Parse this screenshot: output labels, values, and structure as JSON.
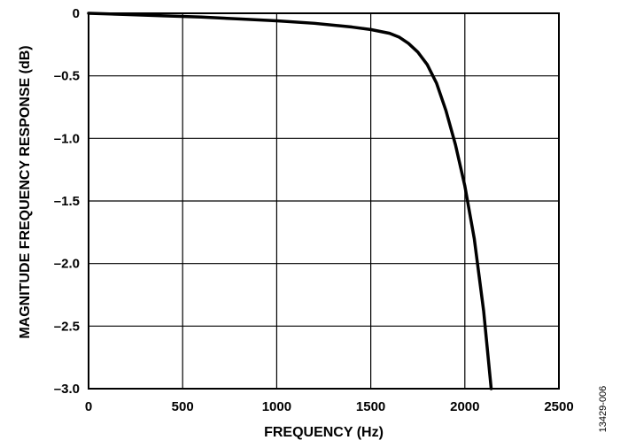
{
  "chart_data": {
    "type": "line",
    "title": "",
    "xlabel": "FREQUENCY (Hz)",
    "ylabel": "MAGNITUDE FREQUENCY RESPONSE (dB)",
    "xlim": [
      0,
      2500
    ],
    "ylim": [
      -3.0,
      0
    ],
    "x_ticks": [
      0,
      500,
      1000,
      1500,
      2000,
      2500
    ],
    "x_tick_labels": [
      "0",
      "500",
      "1000",
      "1500",
      "2000",
      "2500"
    ],
    "y_ticks": [
      0,
      -0.5,
      -1.0,
      -1.5,
      -2.0,
      -2.5,
      -3.0
    ],
    "y_tick_labels": [
      "0",
      "–0.5",
      "–1.0",
      "–1.5",
      "–2.0",
      "–2.5",
      "–3.0"
    ],
    "grid": true,
    "series": [
      {
        "x": [
          0,
          200,
          400,
          600,
          800,
          1000,
          1200,
          1400,
          1500,
          1600,
          1650,
          1700,
          1750,
          1800,
          1850,
          1900,
          1950,
          2000,
          2050,
          2100,
          2140
        ],
        "y": [
          0,
          -0.01,
          -0.02,
          -0.03,
          -0.045,
          -0.06,
          -0.08,
          -0.11,
          -0.13,
          -0.16,
          -0.19,
          -0.24,
          -0.31,
          -0.41,
          -0.56,
          -0.78,
          -1.05,
          -1.38,
          -1.8,
          -2.38,
          -3.0
        ]
      }
    ],
    "colors": {
      "line": "#000000",
      "grid": "#000000",
      "background": "#ffffff"
    }
  },
  "figure_code": "13429-006"
}
